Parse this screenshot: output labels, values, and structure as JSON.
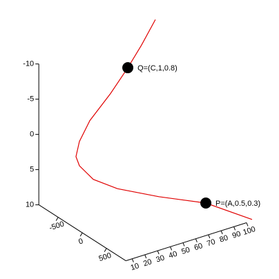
{
  "chart_data": {
    "type": "line3d",
    "xlim": [
      5,
      100
    ],
    "xticks": [
      10,
      20,
      30,
      40,
      50,
      60,
      70,
      80,
      90,
      100
    ],
    "ylim": [
      -900,
      900
    ],
    "yticks": [
      -500,
      0,
      500
    ],
    "zlim": [
      -10,
      10
    ],
    "zticks": [
      -10,
      -5,
      0,
      5,
      10
    ],
    "series": [
      {
        "color": "#e00000",
        "x": [
          62.5,
          51.6,
          40.8,
          27.2,
          10.9,
          2.7,
          0,
          2.7,
          13.6,
          32.6,
          65.2,
          102.2,
          138.6
        ],
        "z": [
          -17.0,
          -14.0,
          -11.4,
          -8.5,
          -5.6,
          -3.1,
          -1.1,
          0.35,
          2.9,
          5.3,
          8.3,
          11.3,
          15.7
        ]
      }
    ],
    "points": [
      {
        "label": "Q=(C,1,0.8)",
        "x": 40.8,
        "z": -11.4
      },
      {
        "label": "P=(A,0.5,0.3)",
        "x": 102.2,
        "z": 11.3
      }
    ]
  }
}
